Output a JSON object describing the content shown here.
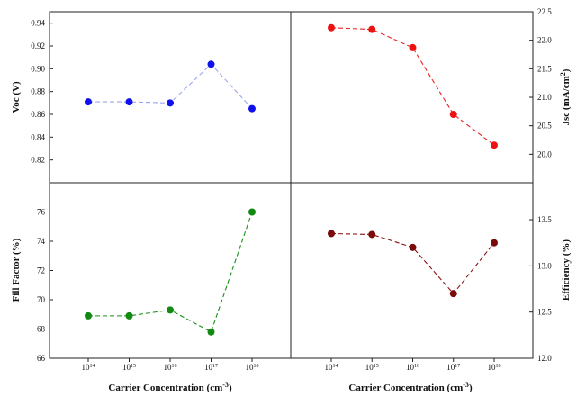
{
  "chart_data": [
    {
      "type": "line",
      "panel": "top-left",
      "x": [
        "10^14",
        "10^15",
        "10^16",
        "10^17",
        "10^18"
      ],
      "series": [
        {
          "values": [
            0.871,
            0.871,
            0.87,
            0.904,
            0.865
          ],
          "color": "#1010ee",
          "line_color": "#9aa6ee"
        }
      ],
      "xlabel": "",
      "ylabel": "Voc (V)",
      "ylim": [
        0.8,
        0.95
      ],
      "yticks": [
        "0.82",
        "0.84",
        "0.86",
        "0.88",
        "0.90",
        "0.92",
        "0.94"
      ],
      "y_axis_side": "left"
    },
    {
      "type": "line",
      "panel": "top-right",
      "x": [
        "10^14",
        "10^15",
        "10^16",
        "10^17",
        "10^18"
      ],
      "series": [
        {
          "values": [
            22.22,
            22.19,
            21.87,
            20.7,
            20.16
          ],
          "color": "#ee1111",
          "line_color": "#ee2222"
        }
      ],
      "xlabel": "",
      "ylabel": "Jsc (mA/cm2)",
      "ylim": [
        19.5,
        22.5
      ],
      "yticks": [
        "20.0",
        "20.5",
        "21.0",
        "21.5",
        "22.0",
        "22.5"
      ],
      "y_axis_side": "right"
    },
    {
      "type": "line",
      "panel": "bottom-left",
      "x": [
        "10^14",
        "10^15",
        "10^16",
        "10^17",
        "10^18"
      ],
      "series": [
        {
          "values": [
            68.9,
            68.9,
            69.3,
            67.8,
            76.0
          ],
          "color": "#128a12",
          "line_color": "#1a8f1a"
        }
      ],
      "xlabel": "Carrier Concentration (cm-3)",
      "ylabel": "Fill Factor (%)",
      "ylim": [
        66,
        78
      ],
      "yticks": [
        "66",
        "68",
        "70",
        "72",
        "74",
        "76"
      ],
      "xticks": [
        "1014",
        "1015",
        "1016",
        "1017",
        "1018"
      ],
      "y_axis_side": "left"
    },
    {
      "type": "line",
      "panel": "bottom-right",
      "x": [
        "10^14",
        "10^15",
        "10^16",
        "10^17",
        "10^18"
      ],
      "series": [
        {
          "values": [
            13.35,
            13.34,
            13.2,
            12.7,
            13.25
          ],
          "color": "#7a0b0b",
          "line_color": "#8a1212"
        }
      ],
      "xlabel": "Carrier Concentration (cm-3)",
      "ylabel": "Efficiency (%)",
      "ylim": [
        12.0,
        13.9
      ],
      "yticks": [
        "12.0",
        "12.5",
        "13.0",
        "13.5"
      ],
      "xticks": [
        "1014",
        "1015",
        "1016",
        "1017",
        "1018"
      ],
      "y_axis_side": "right"
    }
  ],
  "text": {
    "voc_ylabel": "Voc (V)",
    "jsc_ylabel_main": "Jsc (mA/cm",
    "jsc_ylabel_sup": "2",
    "jsc_ylabel_end": ")",
    "ff_ylabel": "Fill Factor (%)",
    "eff_ylabel": "Efficiency (%)",
    "xlabel_main": "Carrier Concentration (cm",
    "xlabel_sup": "-3",
    "xlabel_end": ")",
    "xtick_base": "10",
    "xtick_exps": [
      "14",
      "15",
      "16",
      "17",
      "18"
    ]
  }
}
